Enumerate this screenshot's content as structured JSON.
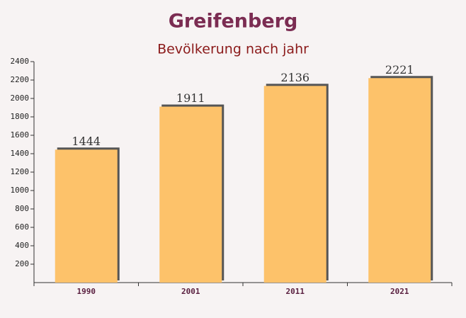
{
  "chart_data": {
    "type": "bar",
    "title": "Greifenberg",
    "subtitle": "Bevölkerung nach jahr",
    "categories": [
      "1990",
      "2001",
      "2011",
      "2021"
    ],
    "values": [
      1444,
      1911,
      2136,
      2221
    ],
    "color": "#fdc26a",
    "ylim": [
      0,
      2400
    ],
    "yticks": [
      200,
      400,
      600,
      800,
      1000,
      1200,
      1400,
      1600,
      1800,
      2000,
      2200,
      2400
    ]
  }
}
